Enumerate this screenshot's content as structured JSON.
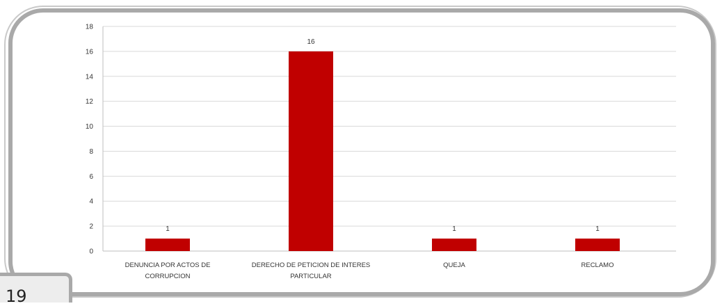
{
  "page": {
    "number": "19"
  },
  "chart_data": {
    "type": "bar",
    "categories": [
      [
        "DENUNCIA POR ACTOS DE",
        "CORRUPCION"
      ],
      [
        "DERECHO DE PETICION DE INTERES",
        "PARTICULAR"
      ],
      [
        "QUEJA"
      ],
      [
        "RECLAMO"
      ]
    ],
    "values": [
      1,
      16,
      1,
      1
    ],
    "data_labels": [
      "1",
      "16",
      "1",
      "1"
    ],
    "ylim": [
      0,
      18
    ],
    "yticks": [
      0,
      2,
      4,
      6,
      8,
      10,
      12,
      14,
      16,
      18
    ],
    "title": "",
    "xlabel": "",
    "ylabel": "",
    "grid": true,
    "bar_color": "#c00000",
    "grid_color": "#d9d9d9"
  }
}
